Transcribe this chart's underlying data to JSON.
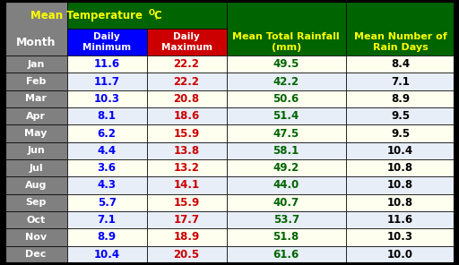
{
  "months": [
    "Jan",
    "Feb",
    "Mar",
    "Apr",
    "May",
    "Jun",
    "Jul",
    "Aug",
    "Sep",
    "Oct",
    "Nov",
    "Dec"
  ],
  "daily_min": [
    11.6,
    11.7,
    10.3,
    8.1,
    6.2,
    4.4,
    3.6,
    4.3,
    5.7,
    7.1,
    8.9,
    10.4
  ],
  "daily_max": [
    22.2,
    22.2,
    20.8,
    18.6,
    15.9,
    13.8,
    13.2,
    14.1,
    15.9,
    17.7,
    18.9,
    20.5
  ],
  "rainfall": [
    49.5,
    42.2,
    50.6,
    51.4,
    47.5,
    58.1,
    49.2,
    44.0,
    40.7,
    53.7,
    51.8,
    61.6
  ],
  "rain_days": [
    8.4,
    7.1,
    8.9,
    9.5,
    9.5,
    10.4,
    10.8,
    10.8,
    10.8,
    11.6,
    10.3,
    10.0
  ],
  "header_bg": "#006400",
  "subheader_min_bg": "#0000FF",
  "subheader_max_bg": "#CC0000",
  "month_col_bg": "#808080",
  "row_bg_odd": "#FFFFF0",
  "row_bg_even": "#E8EEF8",
  "rain_days_odd_bg": "#FFFFF0",
  "rain_days_even_bg": "#E8EEF8",
  "month_text_color": "#FFFFFF",
  "min_text_color": "#0000FF",
  "max_text_color": "#CC0000",
  "rainfall_text_color": "#006400",
  "rain_days_text_color": "#000000",
  "header_text_color": "#FFFF00",
  "subheader_text_color": "#FFFFFF",
  "border_color": "#000000"
}
